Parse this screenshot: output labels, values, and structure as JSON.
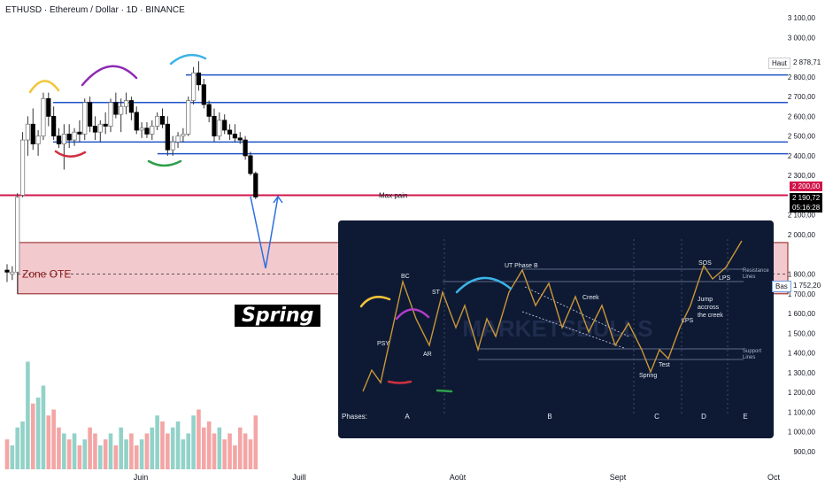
{
  "header": {
    "title": "ETHUSD · Ethereum / Dollar · 1D · BINANCE"
  },
  "price_axis": {
    "ticks": [
      "3 100,00",
      "3 000,00",
      "2 800,00",
      "2 700,00",
      "2 600,00",
      "2 500,00",
      "2 400,00",
      "2 300,00",
      "2 100,00",
      "2 000,00",
      "1 800,00",
      "1 700,00",
      "1 600,00",
      "1 500,00",
      "1 400,00",
      "1 300,00",
      "1 200,00",
      "1 100,00",
      "1 000,00",
      "900,00"
    ],
    "tick_values": [
      3100,
      3000,
      2800,
      2700,
      2600,
      2500,
      2400,
      2300,
      2100,
      2000,
      1800,
      1700,
      1600,
      1500,
      1400,
      1300,
      1200,
      1100,
      1000,
      900
    ],
    "high_label": "Haut",
    "high_value": "2 878,71",
    "resist_value": "2 200,00",
    "last_value": "2 190,72",
    "countdown": "05:16:28",
    "low_label": "Bas",
    "low_value": "1 752,20"
  },
  "time_axis": {
    "labels": [
      "Juin",
      "Juill",
      "Août",
      "Sept",
      "Oct"
    ]
  },
  "annotations": {
    "max_pain": "Max pain",
    "zone": "Zone OTE",
    "spring": "Spring"
  },
  "colors": {
    "up": "#7a7a7a",
    "down": "#000000",
    "blue_line": "#1e53c8",
    "red_line": "#d1154a",
    "zone_fill": "#f2c9cd",
    "zone_border": "#8b1a1a",
    "vol_up": "#92d2c8",
    "vol_down": "#f4a5a5",
    "arrow": "#2b6fe0"
  },
  "wyckoff_inset": {
    "phases_label": "Phases:",
    "phases": [
      "A",
      "B",
      "C",
      "D",
      "E"
    ],
    "labels": [
      "PSY",
      "BC",
      "AR",
      "ST",
      "UT Phase B",
      "Creek",
      "Spring",
      "Test",
      "LPS",
      "SOS",
      "LPS",
      "Jump accross the creek",
      "Resistance Lines",
      "Support Lines"
    ],
    "watermark": "MARKETSBULLS"
  },
  "chart_data": {
    "type": "candlestick",
    "title": "ETHUSD · Ethereum / Dollar · 1D · BINANCE",
    "x_labels": [
      "Juin",
      "Juill",
      "Août",
      "Sept",
      "Oct"
    ],
    "ylim": [
      900,
      3100
    ],
    "horizontal_levels": [
      2810,
      2670,
      2470,
      2410,
      2200
    ],
    "ote_zone": [
      1700,
      1960
    ],
    "candles": [
      {
        "o": 1820,
        "h": 1850,
        "l": 1760,
        "c": 1810
      },
      {
        "o": 1800,
        "h": 1840,
        "l": 1770,
        "c": 1810
      },
      {
        "o": 1810,
        "h": 2210,
        "l": 1700,
        "c": 2190
      },
      {
        "o": 2200,
        "h": 2520,
        "l": 2190,
        "c": 2480
      },
      {
        "o": 2480,
        "h": 2600,
        "l": 2400,
        "c": 2560
      },
      {
        "o": 2560,
        "h": 2640,
        "l": 2430,
        "c": 2460
      },
      {
        "o": 2460,
        "h": 2530,
        "l": 2400,
        "c": 2500
      },
      {
        "o": 2500,
        "h": 2720,
        "l": 2480,
        "c": 2690
      },
      {
        "o": 2690,
        "h": 2720,
        "l": 2550,
        "c": 2600
      },
      {
        "o": 2600,
        "h": 2650,
        "l": 2480,
        "c": 2500
      },
      {
        "o": 2500,
        "h": 2540,
        "l": 2440,
        "c": 2460
      },
      {
        "o": 2460,
        "h": 2560,
        "l": 2330,
        "c": 2510
      },
      {
        "o": 2510,
        "h": 2560,
        "l": 2440,
        "c": 2480
      },
      {
        "o": 2480,
        "h": 2540,
        "l": 2450,
        "c": 2520
      },
      {
        "o": 2520,
        "h": 2580,
        "l": 2470,
        "c": 2510
      },
      {
        "o": 2510,
        "h": 2690,
        "l": 2480,
        "c": 2670
      },
      {
        "o": 2670,
        "h": 2700,
        "l": 2520,
        "c": 2550
      },
      {
        "o": 2550,
        "h": 2600,
        "l": 2480,
        "c": 2520
      },
      {
        "o": 2520,
        "h": 2580,
        "l": 2470,
        "c": 2560
      },
      {
        "o": 2560,
        "h": 2620,
        "l": 2510,
        "c": 2550
      },
      {
        "o": 2550,
        "h": 2690,
        "l": 2520,
        "c": 2670
      },
      {
        "o": 2670,
        "h": 2720,
        "l": 2590,
        "c": 2610
      },
      {
        "o": 2610,
        "h": 2690,
        "l": 2520,
        "c": 2650
      },
      {
        "o": 2650,
        "h": 2720,
        "l": 2610,
        "c": 2680
      },
      {
        "o": 2680,
        "h": 2700,
        "l": 2580,
        "c": 2620
      },
      {
        "o": 2620,
        "h": 2650,
        "l": 2510,
        "c": 2530
      },
      {
        "o": 2530,
        "h": 2570,
        "l": 2490,
        "c": 2540
      },
      {
        "o": 2540,
        "h": 2570,
        "l": 2490,
        "c": 2510
      },
      {
        "o": 2510,
        "h": 2580,
        "l": 2480,
        "c": 2550
      },
      {
        "o": 2550,
        "h": 2620,
        "l": 2530,
        "c": 2600
      },
      {
        "o": 2600,
        "h": 2640,
        "l": 2540,
        "c": 2560
      },
      {
        "o": 2560,
        "h": 2600,
        "l": 2400,
        "c": 2430
      },
      {
        "o": 2430,
        "h": 2500,
        "l": 2400,
        "c": 2470
      },
      {
        "o": 2470,
        "h": 2520,
        "l": 2440,
        "c": 2500
      },
      {
        "o": 2500,
        "h": 2540,
        "l": 2470,
        "c": 2510
      },
      {
        "o": 2510,
        "h": 2700,
        "l": 2500,
        "c": 2680
      },
      {
        "o": 2680,
        "h": 2850,
        "l": 2660,
        "c": 2820
      },
      {
        "o": 2820,
        "h": 2879,
        "l": 2730,
        "c": 2760
      },
      {
        "o": 2760,
        "h": 2790,
        "l": 2640,
        "c": 2660
      },
      {
        "o": 2660,
        "h": 2680,
        "l": 2570,
        "c": 2600
      },
      {
        "o": 2600,
        "h": 2640,
        "l": 2470,
        "c": 2500
      },
      {
        "o": 2500,
        "h": 2620,
        "l": 2480,
        "c": 2580
      },
      {
        "o": 2580,
        "h": 2610,
        "l": 2510,
        "c": 2530
      },
      {
        "o": 2530,
        "h": 2560,
        "l": 2480,
        "c": 2510
      },
      {
        "o": 2510,
        "h": 2560,
        "l": 2470,
        "c": 2490
      },
      {
        "o": 2490,
        "h": 2520,
        "l": 2460,
        "c": 2480
      },
      {
        "o": 2480,
        "h": 2500,
        "l": 2380,
        "c": 2400
      },
      {
        "o": 2400,
        "h": 2420,
        "l": 2300,
        "c": 2310
      },
      {
        "o": 2310,
        "h": 2320,
        "l": 2180,
        "c": 2191
      }
    ],
    "volume": [
      0.25,
      0.2,
      0.35,
      0.4,
      0.9,
      0.55,
      0.6,
      0.7,
      0.45,
      0.5,
      0.35,
      0.3,
      0.25,
      0.3,
      0.2,
      0.25,
      0.35,
      0.3,
      0.2,
      0.25,
      0.3,
      0.2,
      0.35,
      0.25,
      0.3,
      0.2,
      0.25,
      0.3,
      0.35,
      0.45,
      0.4,
      0.3,
      0.35,
      0.4,
      0.25,
      0.3,
      0.45,
      0.5,
      0.35,
      0.4,
      0.3,
      0.35,
      0.25,
      0.3,
      0.2,
      0.35,
      0.3,
      0.25,
      0.45
    ]
  }
}
